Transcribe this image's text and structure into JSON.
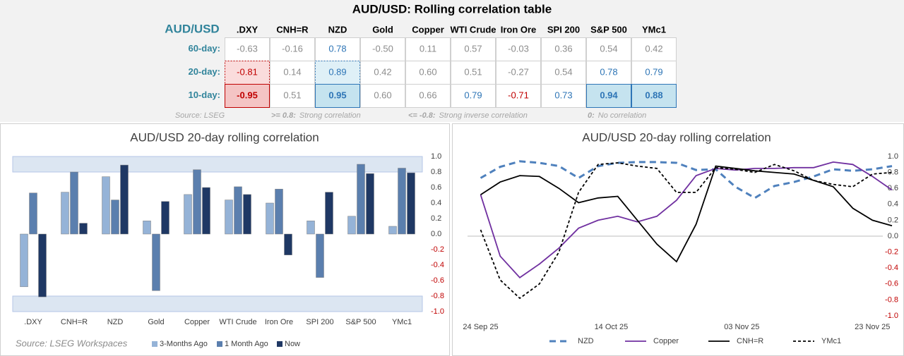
{
  "table": {
    "title": "AUD/USD: Rolling correlation table",
    "corner": "AUD/USD",
    "columns": [
      ".DXY",
      "CNH=R",
      "NZD",
      "Gold",
      "Copper",
      "WTI Crude",
      "Iron Ore",
      "SPI 200",
      "S&P 500",
      "YMc1"
    ],
    "rows": [
      {
        "label": "60-day:",
        "values": [
          "-0.63",
          "-0.16",
          "0.78",
          "-0.50",
          "0.11",
          "0.57",
          "-0.03",
          "0.36",
          "0.54",
          "0.42"
        ]
      },
      {
        "label": "20-day:",
        "values": [
          "-0.81",
          "0.14",
          "0.89",
          "0.42",
          "0.60",
          "0.51",
          "-0.27",
          "0.54",
          "0.78",
          "0.79"
        ]
      },
      {
        "label": "10-day:",
        "values": [
          "-0.95",
          "0.51",
          "0.95",
          "0.60",
          "0.66",
          "0.79",
          "-0.71",
          "0.73",
          "0.94",
          "0.88"
        ]
      }
    ],
    "source": "Source: LSEG",
    "notes": [
      {
        "key": ">= 0.8:",
        "text": "Strong correlation"
      },
      {
        "key": "<= -0.8:",
        "text": "Strong inverse correlation"
      },
      {
        "key": "0:",
        "text": "No correlation"
      }
    ]
  },
  "chart_data": [
    {
      "type": "bar",
      "title": "AUD/USD 20-day rolling correlation",
      "source": "Source: LSEG Workspaces",
      "categories": [
        ".DXY",
        "CNH=R",
        "NZD",
        "Gold",
        "Copper",
        "WTI Crude",
        "Iron Ore",
        "SPI 200",
        "S&P 500",
        "YMc1"
      ],
      "series": [
        {
          "name": "3-Months Ago",
          "color": "#95b3d7",
          "values": [
            -0.68,
            0.54,
            0.74,
            0.17,
            0.51,
            0.44,
            0.4,
            0.17,
            0.23,
            0.1
          ]
        },
        {
          "name": "1 Month Ago",
          "color": "#5b7fae",
          "values": [
            0.53,
            0.8,
            0.44,
            -0.73,
            0.83,
            0.61,
            0.58,
            -0.56,
            0.9,
            0.85
          ]
        },
        {
          "name": "Now",
          "color": "#1f3864",
          "values": [
            -0.81,
            0.14,
            0.89,
            0.42,
            0.6,
            0.51,
            -0.27,
            0.54,
            0.78,
            0.79
          ]
        }
      ],
      "shaded_ranges": [
        [
          0.8,
          1
        ],
        [
          -1,
          -0.8
        ]
      ],
      "ylim": [
        -1,
        1
      ],
      "yticks": [
        {
          "value": 1,
          "label": "1.0"
        },
        0.8,
        0.6,
        0.4,
        0.2,
        {
          "value": 0,
          "label": "0.0"
        },
        -0.2,
        -0.4,
        -0.6,
        -0.8,
        {
          "value": -1,
          "label": "-1.0"
        }
      ],
      "negative_tick_color": "#c00000",
      "legend": "bottom"
    },
    {
      "type": "line",
      "title": "AUD/USD 20-day rolling correlation",
      "x": [
        "2025-09-24",
        "2025-09-27",
        "2025-09-30",
        "2025-10-03",
        "2025-10-06",
        "2025-10-09",
        "2025-10-12",
        "2025-10-15",
        "2025-10-18",
        "2025-10-21",
        "2025-10-24",
        "2025-10-27",
        "2025-10-30",
        "2025-11-02",
        "2025-11-05",
        "2025-11-08",
        "2025-11-11",
        "2025-11-14",
        "2025-11-17",
        "2025-11-20",
        "2025-11-23",
        "2025-11-26"
      ],
      "xlim": [
        "2025-09-22",
        "2025-11-26"
      ],
      "xticks": [
        {
          "value": "2025-09-24",
          "label": "24 Sep 25"
        },
        {
          "value": "2025-10-14",
          "label": "14 Oct 25"
        },
        {
          "value": "2025-11-03",
          "label": "03 Nov 25"
        },
        {
          "value": "2025-11-23",
          "label": "23 Nov 25"
        }
      ],
      "series": [
        {
          "name": "NZD",
          "color": "#4f81bd",
          "line_style": "dashed",
          "values": [
            0.73,
            0.87,
            0.94,
            0.92,
            0.88,
            0.73,
            0.88,
            0.92,
            0.93,
            0.93,
            0.92,
            0.83,
            0.84,
            0.62,
            0.48,
            0.63,
            0.68,
            0.75,
            0.84,
            0.82,
            0.84,
            0.88
          ]
        },
        {
          "name": "Copper",
          "color": "#7030a0",
          "line_style": "solid",
          "values": [
            0.52,
            -0.25,
            -0.52,
            -0.35,
            -0.15,
            0.1,
            0.2,
            0.25,
            0.18,
            0.25,
            0.45,
            0.76,
            0.85,
            0.83,
            0.85,
            0.85,
            0.86,
            0.86,
            0.93,
            0.9,
            0.75,
            0.58
          ]
        },
        {
          "name": "CNH=R",
          "color": "#000000",
          "line_style": "solid",
          "values": [
            0.52,
            0.68,
            0.76,
            0.75,
            0.6,
            0.42,
            0.48,
            0.5,
            0.2,
            -0.1,
            -0.32,
            0.15,
            0.88,
            0.85,
            0.82,
            0.8,
            0.78,
            0.7,
            0.62,
            0.35,
            0.2,
            0.13
          ]
        },
        {
          "name": "YMc1",
          "color": "#000000",
          "line_style": "dotted",
          "values": [
            0.08,
            -0.55,
            -0.78,
            -0.6,
            -0.2,
            0.55,
            0.9,
            0.92,
            0.88,
            0.85,
            0.55,
            0.55,
            0.86,
            0.84,
            0.8,
            0.9,
            0.82,
            0.7,
            0.65,
            0.62,
            0.78,
            0.8
          ]
        }
      ],
      "ylim": [
        -1,
        1
      ],
      "yticks": [
        {
          "value": 1,
          "label": "1.0"
        },
        0.8,
        0.6,
        0.4,
        0.2,
        {
          "value": 0,
          "label": "0.0"
        },
        -0.2,
        -0.4,
        -0.6,
        -0.8,
        {
          "value": -1,
          "label": "-1.0"
        }
      ],
      "negative_tick_color": "#c00000",
      "zero_line": true,
      "legend": "bottom"
    }
  ]
}
